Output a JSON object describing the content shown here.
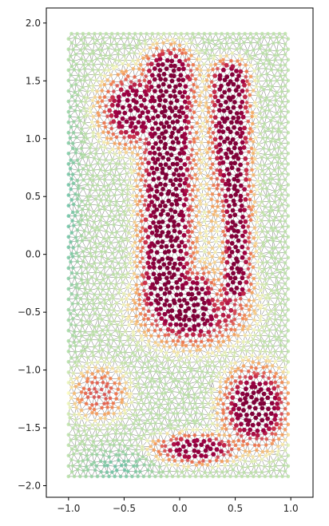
{
  "chart_data": {
    "type": "scatter",
    "title": "",
    "xlabel": "",
    "ylabel": "",
    "xlim": [
      -1.2,
      1.2
    ],
    "ylim": [
      -2.1,
      2.13
    ],
    "x_ticks": [
      -1.0,
      -0.5,
      0.0,
      0.5,
      1.0
    ],
    "x_tick_labels": [
      "−1.0",
      "−0.5",
      "0.0",
      "0.5",
      "1.0"
    ],
    "y_ticks": [
      -2.0,
      -1.5,
      -1.0,
      -0.5,
      0.0,
      0.5,
      1.0,
      1.5,
      2.0
    ],
    "y_tick_labels": [
      "−2.0",
      "−1.5",
      "−1.0",
      "−0.5",
      "0.0",
      "0.5",
      "1.0",
      "1.5",
      "2.0"
    ],
    "domain": {
      "x": [
        -1.0,
        1.0
      ],
      "y": [
        -1.92,
        1.92
      ]
    },
    "mesh": "triangulation",
    "colormap": "Spectral",
    "grid": false,
    "legend": "none",
    "colors": {
      "high": "#7f0138",
      "mid_high": "#e0472f",
      "mid": "#fdb760",
      "mid_low": "#fefcbb",
      "low_mid": "#8fd3a5",
      "low": "#3787bb",
      "mesh_edge": "#000000"
    }
  }
}
